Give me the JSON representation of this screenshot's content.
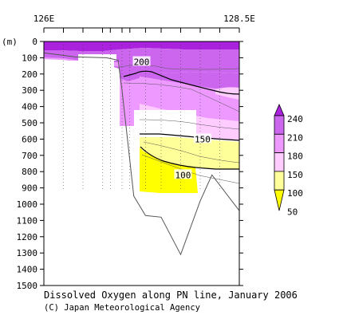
{
  "chart_data": {
    "type": "contour",
    "title": "Dissolved Oxygen along PN line, January 2006",
    "credit": "(C) Japan Meteorological Agency",
    "x_axis": {
      "tick_labels": [
        "126E",
        "128.5E"
      ],
      "range": [
        126.0,
        128.5
      ]
    },
    "y_axis": {
      "label": "(m)",
      "range": [
        0,
        1500
      ],
      "inverted": true,
      "tick_values": [
        0,
        100,
        200,
        300,
        400,
        500,
        600,
        700,
        800,
        900,
        1000,
        1100,
        1200,
        1300,
        1400,
        1500
      ]
    },
    "station_longitudes": [
      126.0,
      126.25,
      126.5,
      126.75,
      126.85,
      127.0,
      127.1,
      127.3,
      127.5,
      127.75,
      128.0,
      128.25,
      128.5
    ],
    "contour_labels": [
      {
        "value": "200",
        "lon": 127.25,
        "depth": 125
      },
      {
        "value": "150",
        "lon": 128.03,
        "depth": 600
      },
      {
        "value": "100",
        "lon": 127.78,
        "depth": 820
      }
    ],
    "colorbar": {
      "levels": [
        50,
        100,
        150,
        180,
        210,
        240
      ],
      "labels": [
        "240",
        "210",
        "180",
        "150",
        "100",
        "50"
      ],
      "colors": [
        "#ffff00",
        "#ffff99",
        "#ffccff",
        "#ee99ff",
        "#cc66ee",
        "#aa22dd"
      ]
    },
    "bottom_profile": [
      {
        "lon": 126.0,
        "depth": 70
      },
      {
        "lon": 126.4,
        "depth": 95
      },
      {
        "lon": 126.8,
        "depth": 100
      },
      {
        "lon": 126.95,
        "depth": 115
      },
      {
        "lon": 127.0,
        "depth": 300
      },
      {
        "lon": 127.15,
        "depth": 950
      },
      {
        "lon": 127.3,
        "depth": 1070
      },
      {
        "lon": 127.5,
        "depth": 1080
      },
      {
        "lon": 127.75,
        "depth": 1310
      },
      {
        "lon": 128.0,
        "depth": 980
      },
      {
        "lon": 128.15,
        "depth": 820
      },
      {
        "lon": 128.5,
        "depth": 1040
      }
    ]
  }
}
